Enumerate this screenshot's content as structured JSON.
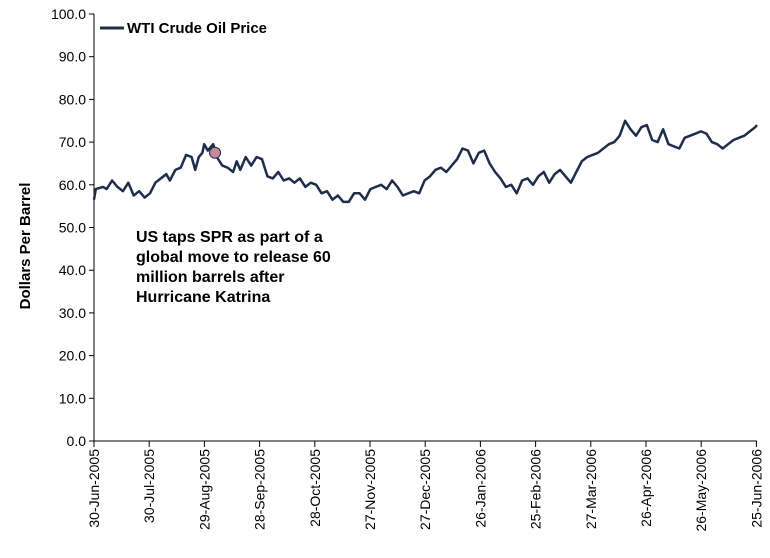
{
  "chart_data": {
    "type": "line",
    "title": "",
    "xlabel": "",
    "ylabel": "Dollars Per Barrel",
    "ylim": [
      0,
      100
    ],
    "ytick_labels": [
      "0.0",
      "10.0",
      "20.0",
      "30.0",
      "40.0",
      "50.0",
      "60.0",
      "70.0",
      "80.0",
      "90.0",
      "100.0"
    ],
    "xtick_labels": [
      "30-Jun-2005",
      "30-Jul-2005",
      "29-Aug-2005",
      "28-Sep-2005",
      "28-Oct-2005",
      "27-Nov-2005",
      "27-Dec-2005",
      "26-Jan-2006",
      "25-Feb-2006",
      "27-Mar-2006",
      "26-Apr-2006",
      "26-May-2006",
      "25-Jun-2006"
    ],
    "x_range": [
      "2005-06-30",
      "2006-07-02"
    ],
    "grid": false,
    "legend_position": "top-left",
    "series": [
      {
        "name": "WTI Crude Oil Price",
        "color": "#1f2d4d",
        "points": [
          [
            "2005-06-30",
            56.5
          ],
          [
            "2005-07-01",
            59.0
          ],
          [
            "2005-07-05",
            59.5
          ],
          [
            "2005-07-07",
            59.0
          ],
          [
            "2005-07-10",
            61.0
          ],
          [
            "2005-07-13",
            59.5
          ],
          [
            "2005-07-16",
            58.5
          ],
          [
            "2005-07-19",
            60.5
          ],
          [
            "2005-07-22",
            57.5
          ],
          [
            "2005-07-25",
            58.5
          ],
          [
            "2005-07-28",
            57.0
          ],
          [
            "2005-07-31",
            58.0
          ],
          [
            "2005-08-03",
            60.5
          ],
          [
            "2005-08-06",
            61.5
          ],
          [
            "2005-08-09",
            62.5
          ],
          [
            "2005-08-11",
            61.0
          ],
          [
            "2005-08-14",
            63.5
          ],
          [
            "2005-08-17",
            64.0
          ],
          [
            "2005-08-20",
            67.0
          ],
          [
            "2005-08-23",
            66.5
          ],
          [
            "2005-08-25",
            63.5
          ],
          [
            "2005-08-27",
            66.5
          ],
          [
            "2005-08-29",
            67.5
          ],
          [
            "2005-08-30",
            69.5
          ],
          [
            "2005-09-01",
            68.0
          ],
          [
            "2005-09-04",
            69.5
          ],
          [
            "2005-09-06",
            66.5
          ],
          [
            "2005-09-09",
            64.5
          ],
          [
            "2005-09-12",
            64.0
          ],
          [
            "2005-09-15",
            63.0
          ],
          [
            "2005-09-17",
            65.5
          ],
          [
            "2005-09-19",
            63.5
          ],
          [
            "2005-09-22",
            66.5
          ],
          [
            "2005-09-25",
            64.5
          ],
          [
            "2005-09-28",
            66.5
          ],
          [
            "2005-10-01",
            66.0
          ],
          [
            "2005-10-04",
            62.0
          ],
          [
            "2005-10-07",
            61.5
          ],
          [
            "2005-10-10",
            63.0
          ],
          [
            "2005-10-13",
            61.0
          ],
          [
            "2005-10-16",
            61.5
          ],
          [
            "2005-10-19",
            60.5
          ],
          [
            "2005-10-22",
            61.5
          ],
          [
            "2005-10-25",
            59.5
          ],
          [
            "2005-10-28",
            60.5
          ],
          [
            "2005-10-31",
            60.0
          ],
          [
            "2005-11-03",
            58.0
          ],
          [
            "2005-11-06",
            58.5
          ],
          [
            "2005-11-09",
            56.5
          ],
          [
            "2005-11-12",
            57.5
          ],
          [
            "2005-11-15",
            56.0
          ],
          [
            "2005-11-18",
            56.0
          ],
          [
            "2005-11-21",
            58.0
          ],
          [
            "2005-11-24",
            58.0
          ],
          [
            "2005-11-27",
            56.5
          ],
          [
            "2005-11-30",
            59.0
          ],
          [
            "2005-12-03",
            59.5
          ],
          [
            "2005-12-06",
            60.0
          ],
          [
            "2005-12-09",
            59.0
          ],
          [
            "2005-12-12",
            61.0
          ],
          [
            "2005-12-15",
            59.5
          ],
          [
            "2005-12-18",
            57.5
          ],
          [
            "2005-12-21",
            58.0
          ],
          [
            "2005-12-24",
            58.5
          ],
          [
            "2005-12-27",
            58.0
          ],
          [
            "2005-12-30",
            61.0
          ],
          [
            "2006-01-02",
            62.0
          ],
          [
            "2006-01-05",
            63.5
          ],
          [
            "2006-01-08",
            64.0
          ],
          [
            "2006-01-11",
            63.0
          ],
          [
            "2006-01-14",
            64.5
          ],
          [
            "2006-01-17",
            66.0
          ],
          [
            "2006-01-20",
            68.5
          ],
          [
            "2006-01-23",
            68.0
          ],
          [
            "2006-01-26",
            65.0
          ],
          [
            "2006-01-29",
            67.5
          ],
          [
            "2006-02-01",
            68.0
          ],
          [
            "2006-02-04",
            65.0
          ],
          [
            "2006-02-07",
            63.0
          ],
          [
            "2006-02-10",
            61.5
          ],
          [
            "2006-02-13",
            59.5
          ],
          [
            "2006-02-16",
            60.0
          ],
          [
            "2006-02-19",
            58.0
          ],
          [
            "2006-02-22",
            61.0
          ],
          [
            "2006-02-25",
            61.5
          ],
          [
            "2006-02-28",
            60.0
          ],
          [
            "2006-03-03",
            62.0
          ],
          [
            "2006-03-06",
            63.0
          ],
          [
            "2006-03-09",
            60.5
          ],
          [
            "2006-03-12",
            62.5
          ],
          [
            "2006-03-15",
            63.5
          ],
          [
            "2006-03-18",
            62.0
          ],
          [
            "2006-03-21",
            60.5
          ],
          [
            "2006-03-24",
            63.0
          ],
          [
            "2006-03-27",
            65.5
          ],
          [
            "2006-03-30",
            66.5
          ],
          [
            "2006-04-02",
            67.0
          ],
          [
            "2006-04-05",
            67.5
          ],
          [
            "2006-04-08",
            68.5
          ],
          [
            "2006-04-11",
            69.5
          ],
          [
            "2006-04-14",
            70.0
          ],
          [
            "2006-04-17",
            71.5
          ],
          [
            "2006-04-20",
            75.0
          ],
          [
            "2006-04-23",
            73.0
          ],
          [
            "2006-04-26",
            71.5
          ],
          [
            "2006-04-29",
            73.5
          ],
          [
            "2006-05-02",
            74.0
          ],
          [
            "2006-05-05",
            70.5
          ],
          [
            "2006-05-08",
            70.0
          ],
          [
            "2006-05-11",
            73.0
          ],
          [
            "2006-05-14",
            69.5
          ],
          [
            "2006-05-17",
            69.0
          ],
          [
            "2006-05-20",
            68.5
          ],
          [
            "2006-05-23",
            71.0
          ],
          [
            "2006-05-26",
            71.5
          ],
          [
            "2006-05-29",
            72.0
          ],
          [
            "2006-06-01",
            72.5
          ],
          [
            "2006-06-04",
            72.0
          ],
          [
            "2006-06-07",
            70.0
          ],
          [
            "2006-06-10",
            69.5
          ],
          [
            "2006-06-13",
            68.5
          ],
          [
            "2006-06-16",
            69.5
          ],
          [
            "2006-06-19",
            70.5
          ],
          [
            "2006-06-22",
            71.0
          ],
          [
            "2006-06-25",
            71.5
          ],
          [
            "2006-06-28",
            72.5
          ],
          [
            "2006-07-01",
            73.5
          ],
          [
            "2006-07-02",
            74.0
          ]
        ]
      }
    ],
    "annotations": [
      {
        "lines": [
          "US taps SPR as part of a",
          "global move to release 60",
          "million barrels after",
          "Hurricane Katrina"
        ],
        "marker": {
          "date": "2005-09-05",
          "value": 67.5,
          "color": "#c98b97"
        }
      }
    ]
  }
}
